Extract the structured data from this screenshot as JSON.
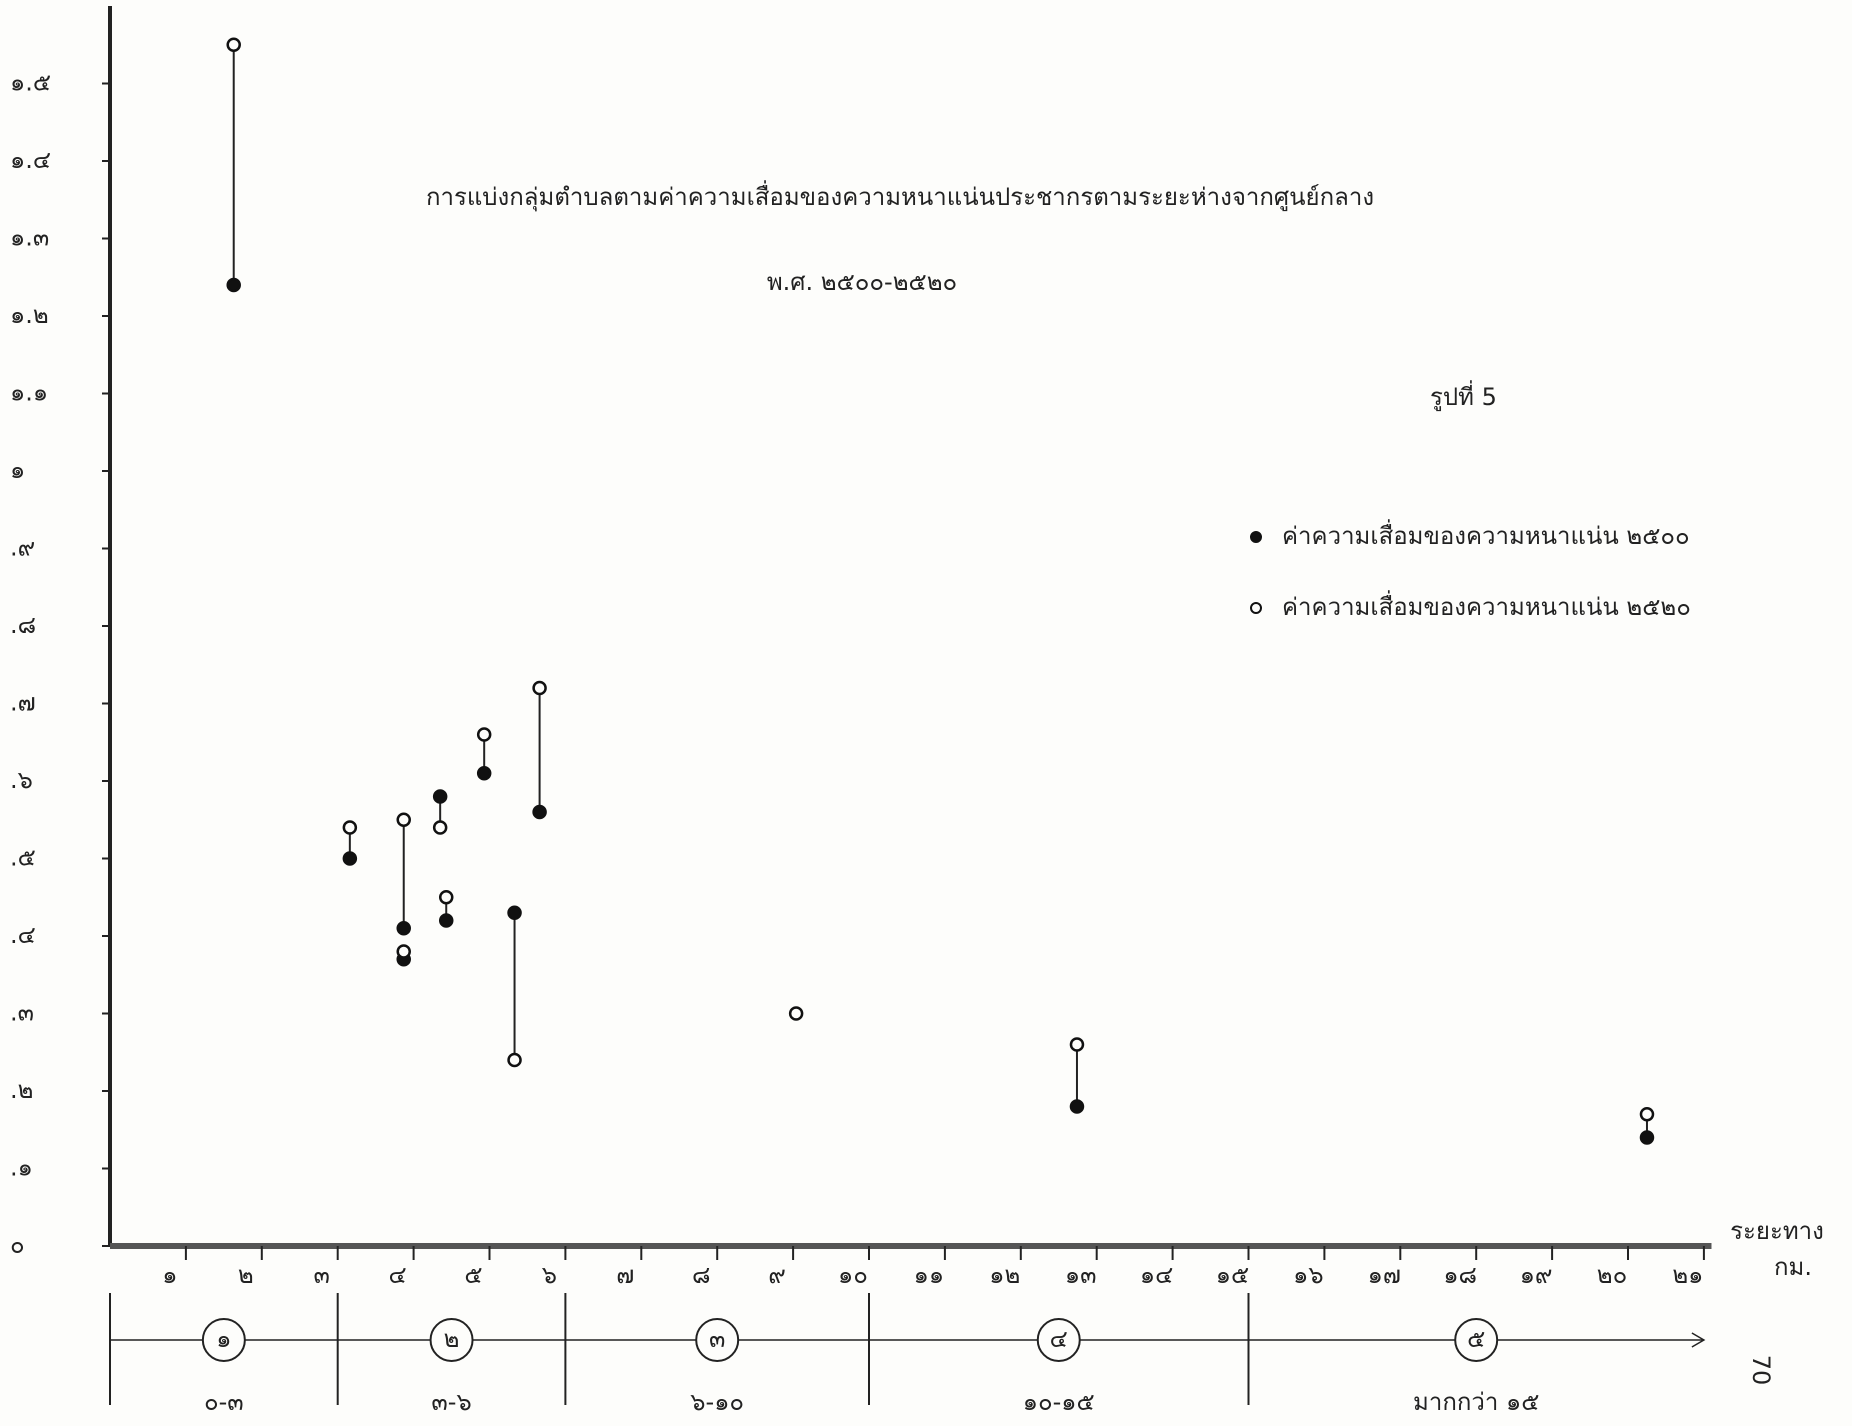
{
  "chart_data": {
    "type": "dumbbell",
    "title": "การแบ่งกลุ่มตำบลตามค่าความเสื่อมของความหนาแน่นประชากรตามระยะห่างจากศูนย์กลาง",
    "subtitle": "พ.ศ. ๒๕๐๐-๒๕๒๐",
    "figure_label": "รูปที่ 5",
    "x_label": "ระยะทาง",
    "x_unit": "กม.",
    "page_number": "70",
    "xlim": [
      0,
      21.1
    ],
    "ylim": [
      0,
      1.6
    ],
    "xticks": [
      {
        "value": 1,
        "label": "๑"
      },
      {
        "value": 2,
        "label": "๒"
      },
      {
        "value": 3,
        "label": "๓"
      },
      {
        "value": 4,
        "label": "๔"
      },
      {
        "value": 5,
        "label": "๕"
      },
      {
        "value": 6,
        "label": "๖"
      },
      {
        "value": 7,
        "label": "๗"
      },
      {
        "value": 8,
        "label": "๘"
      },
      {
        "value": 9,
        "label": "๙"
      },
      {
        "value": 10,
        "label": "๑๐"
      },
      {
        "value": 11,
        "label": "๑๑"
      },
      {
        "value": 12,
        "label": "๑๒"
      },
      {
        "value": 13,
        "label": "๑๓"
      },
      {
        "value": 14,
        "label": "๑๔"
      },
      {
        "value": 15,
        "label": "๑๕"
      },
      {
        "value": 16,
        "label": "๑๖"
      },
      {
        "value": 17,
        "label": "๑๗"
      },
      {
        "value": 18,
        "label": "๑๘"
      },
      {
        "value": 19,
        "label": "๑๙"
      },
      {
        "value": 20,
        "label": "๒๐"
      },
      {
        "value": 21,
        "label": "๒๑"
      }
    ],
    "yticks": [
      {
        "value": 0,
        "label": "๐"
      },
      {
        "value": 0.1,
        "label": ".๑"
      },
      {
        "value": 0.2,
        "label": ".๒"
      },
      {
        "value": 0.3,
        "label": ".๓"
      },
      {
        "value": 0.4,
        "label": ".๔"
      },
      {
        "value": 0.5,
        "label": ".๕"
      },
      {
        "value": 0.6,
        "label": ".๖"
      },
      {
        "value": 0.7,
        "label": ".๗"
      },
      {
        "value": 0.8,
        "label": ".๘"
      },
      {
        "value": 0.9,
        "label": ".๙"
      },
      {
        "value": 1,
        "label": "๑"
      },
      {
        "value": 1.1,
        "label": "๑.๑"
      },
      {
        "value": 1.2,
        "label": "๑.๒"
      },
      {
        "value": 1.3,
        "label": "๑.๓"
      },
      {
        "value": 1.4,
        "label": "๑.๔"
      },
      {
        "value": 1.5,
        "label": "๑.๕"
      }
    ],
    "x": [
      1.63,
      3.16,
      3.87,
      3.87,
      4.35,
      4.43,
      4.93,
      5.33,
      5.66,
      9.04,
      12.74,
      20.25
    ],
    "series": [
      {
        "name": "ค่าความเสื่อมของความหนาแน่น ๒๕๐๐",
        "color": "#111111",
        "marker": "filled",
        "values": [
          1.24,
          0.5,
          0.37,
          0.41,
          0.58,
          0.42,
          0.61,
          0.43,
          0.56,
          null,
          0.18,
          0.14
        ]
      },
      {
        "name": "ค่าความเสื่อมของความหนาแน่น ๒๕๒๐",
        "color": "#111111",
        "marker": "open",
        "values": [
          1.55,
          0.54,
          0.38,
          0.55,
          0.54,
          0.45,
          0.66,
          0.24,
          0.72,
          0.3,
          0.26,
          0.17
        ]
      }
    ],
    "zones": [
      {
        "number": "๑",
        "range": "๐-๓",
        "start": 0,
        "end": 3
      },
      {
        "number": "๒",
        "range": "๓-๖",
        "start": 3,
        "end": 6
      },
      {
        "number": "๓",
        "range": "๖-๑๐",
        "start": 6,
        "end": 10
      },
      {
        "number": "๔",
        "range": "๑๐-๑๕",
        "start": 10,
        "end": 15
      },
      {
        "number": "๕",
        "range": "มากกว่า ๑๕",
        "start": 15,
        "end": 21
      }
    ]
  }
}
